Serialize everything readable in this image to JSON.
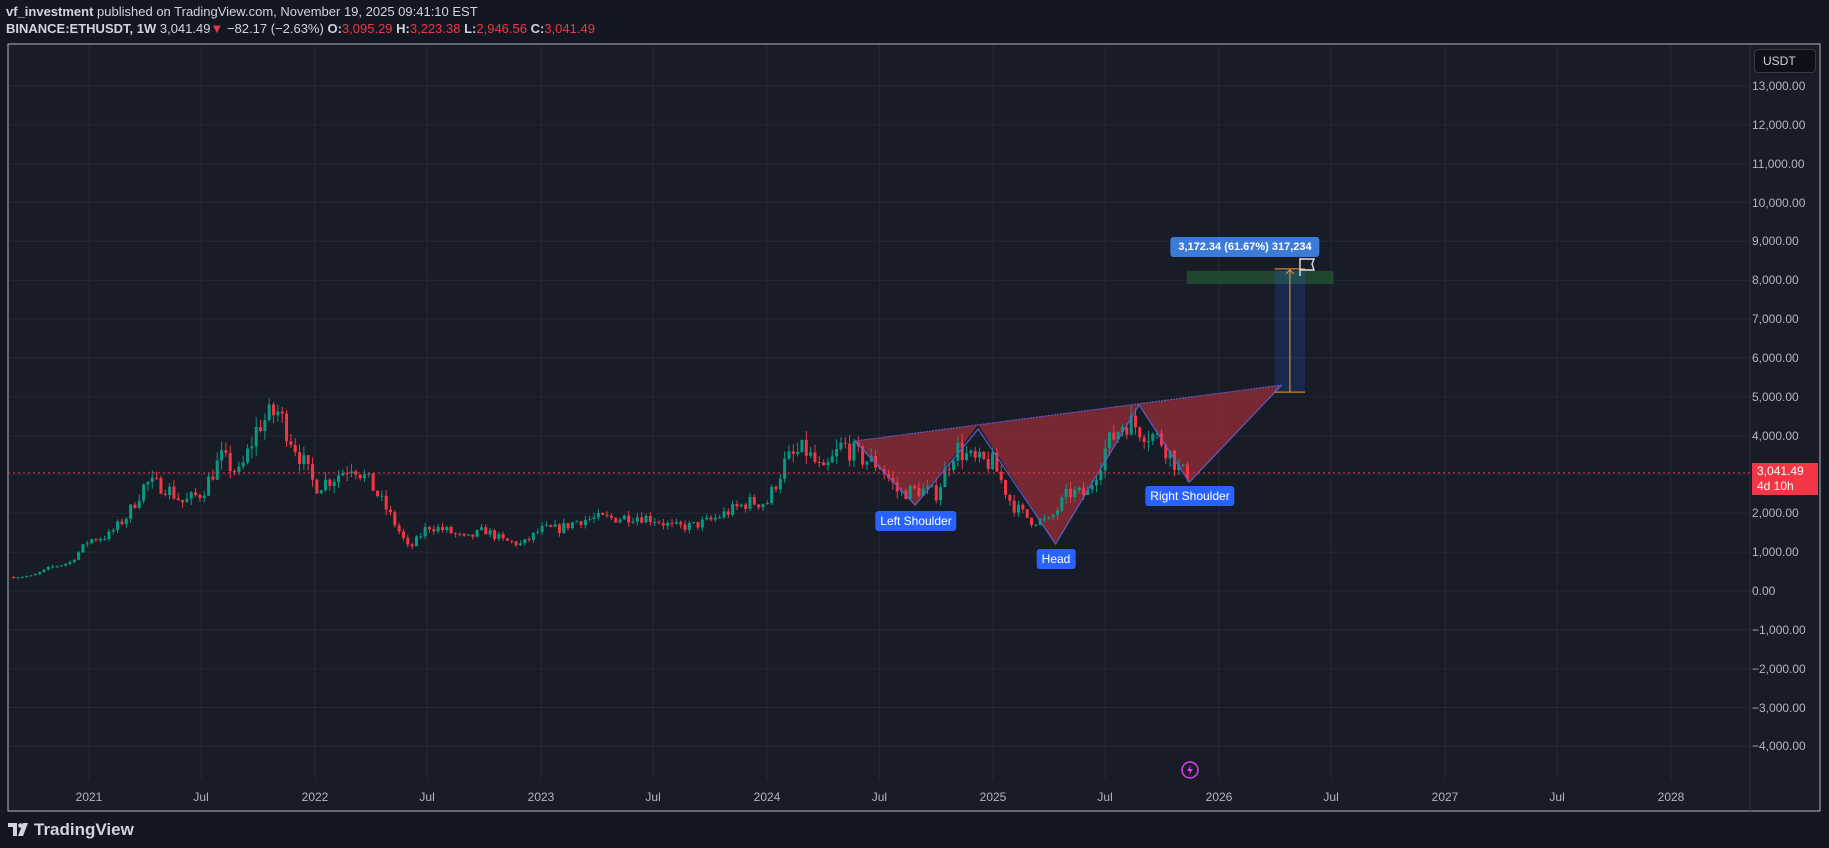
{
  "header": {
    "author": "vf_investment",
    "published": "published on TradingView.com, November 19, 2025 09:41:10 EST",
    "symbol": "BINANCE:ETHUSDT, 1W",
    "last": "3,041.49",
    "change": "−82.17 (−2.63%)",
    "o_label": "O:",
    "o": "3,095.29",
    "h_label": "H:",
    "h": "3,223.38",
    "l_label": "L:",
    "l": "2,946.56",
    "c_label": "C:",
    "c": "3,041.49"
  },
  "currency_button": "USDT",
  "current_price": {
    "price": 3041.49,
    "label": "3,041.49",
    "countdown": "4d 10h"
  },
  "pattern_labels": {
    "left": "Left Shoulder",
    "head": "Head",
    "right": "Right Shoulder"
  },
  "measure_label": "3,172.34 (61.67%) 317,234",
  "footer": {
    "brand": "TradingView"
  },
  "colors": {
    "up": "#089981",
    "down": "#f23645",
    "label_blue": "#2962ff",
    "pattern_fill": "#8a2a36",
    "target_zone": "#244a33"
  },
  "icons": [
    "down-triangle-icon",
    "flag-icon",
    "lightning-icon",
    "tradingview-logo-icon"
  ],
  "chart_data": {
    "type": "candlestick",
    "interval": "1W",
    "ylim": [
      -4500,
      13500
    ],
    "y_ticks": [
      "13,000.00",
      "12,000.00",
      "11,000.00",
      "10,000.00",
      "9,000.00",
      "8,000.00",
      "7,000.00",
      "6,000.00",
      "5,000.00",
      "4,000.00",
      "3,000.00",
      "2,000.00",
      "1,000.00",
      "0.00",
      "−1,000.00",
      "−2,000.00",
      "−3,000.00",
      "−4,000.00"
    ],
    "y_tick_values": [
      13000,
      12000,
      11000,
      10000,
      9000,
      8000,
      7000,
      6000,
      5000,
      4000,
      3000,
      2000,
      1000,
      0,
      -1000,
      -2000,
      -3000,
      -4000
    ],
    "x_ticks": [
      {
        "label": "2021",
        "date": "2021-01-01"
      },
      {
        "label": "Jul",
        "date": "2021-07-01"
      },
      {
        "label": "2022",
        "date": "2022-01-01"
      },
      {
        "label": "Jul",
        "date": "2022-07-01"
      },
      {
        "label": "2023",
        "date": "2023-01-01"
      },
      {
        "label": "Jul",
        "date": "2023-07-01"
      },
      {
        "label": "2024",
        "date": "2024-01-01"
      },
      {
        "label": "Jul",
        "date": "2024-07-01"
      },
      {
        "label": "2025",
        "date": "2025-01-01"
      },
      {
        "label": "Jul",
        "date": "2025-07-01"
      },
      {
        "label": "2026",
        "date": "2026-01-01"
      },
      {
        "label": "Jul",
        "date": "2026-07-01"
      },
      {
        "label": "2027",
        "date": "2027-01-01"
      },
      {
        "label": "Jul",
        "date": "2027-07-01"
      },
      {
        "label": "2028",
        "date": "2028-01-01"
      }
    ],
    "monthly_closes_start": "2020-09-01",
    "monthly_closes": [
      360,
      386,
      615,
      737,
      1314,
      1416,
      1918,
      2773,
      2707,
      2275,
      2536,
      3433,
      3001,
      4288,
      4631,
      3683,
      2688,
      2920,
      3282,
      2727,
      1942,
      1067,
      1678,
      1554,
      1328,
      1572,
      1295,
      1196,
      1585,
      1605,
      1822,
      1870,
      1874,
      1934,
      1857,
      1645,
      1671,
      1815,
      2052,
      2282,
      2283,
      3340,
      3647,
      3014,
      3763,
      3433,
      3232,
      2513,
      2603,
      2518,
      3703,
      3332,
      3300,
      2237,
      1822,
      1794,
      2528,
      2486,
      3698,
      4391,
      4145,
      3847,
      3041
    ],
    "head_and_shoulders": {
      "points": [
        {
          "date": "2024-05-22",
          "price": 3860
        },
        {
          "date": "2024-08-28",
          "price": 2210
        },
        {
          "date": "2024-12-08",
          "price": 4170
        },
        {
          "date": "2025-04-12",
          "price": 1210
        },
        {
          "date": "2025-08-25",
          "price": 4790
        },
        {
          "date": "2025-11-14",
          "price": 2800
        },
        {
          "date": "2026-04-12",
          "price": 5300
        }
      ]
    },
    "target_zone": {
      "from": "2025-11-10",
      "to": "2026-07-05",
      "top": 8240,
      "bottom": 7900
    },
    "measure": {
      "from": "2026-04-01",
      "to": "2026-05-20",
      "start_price": 5120,
      "end_price": 8290
    }
  }
}
